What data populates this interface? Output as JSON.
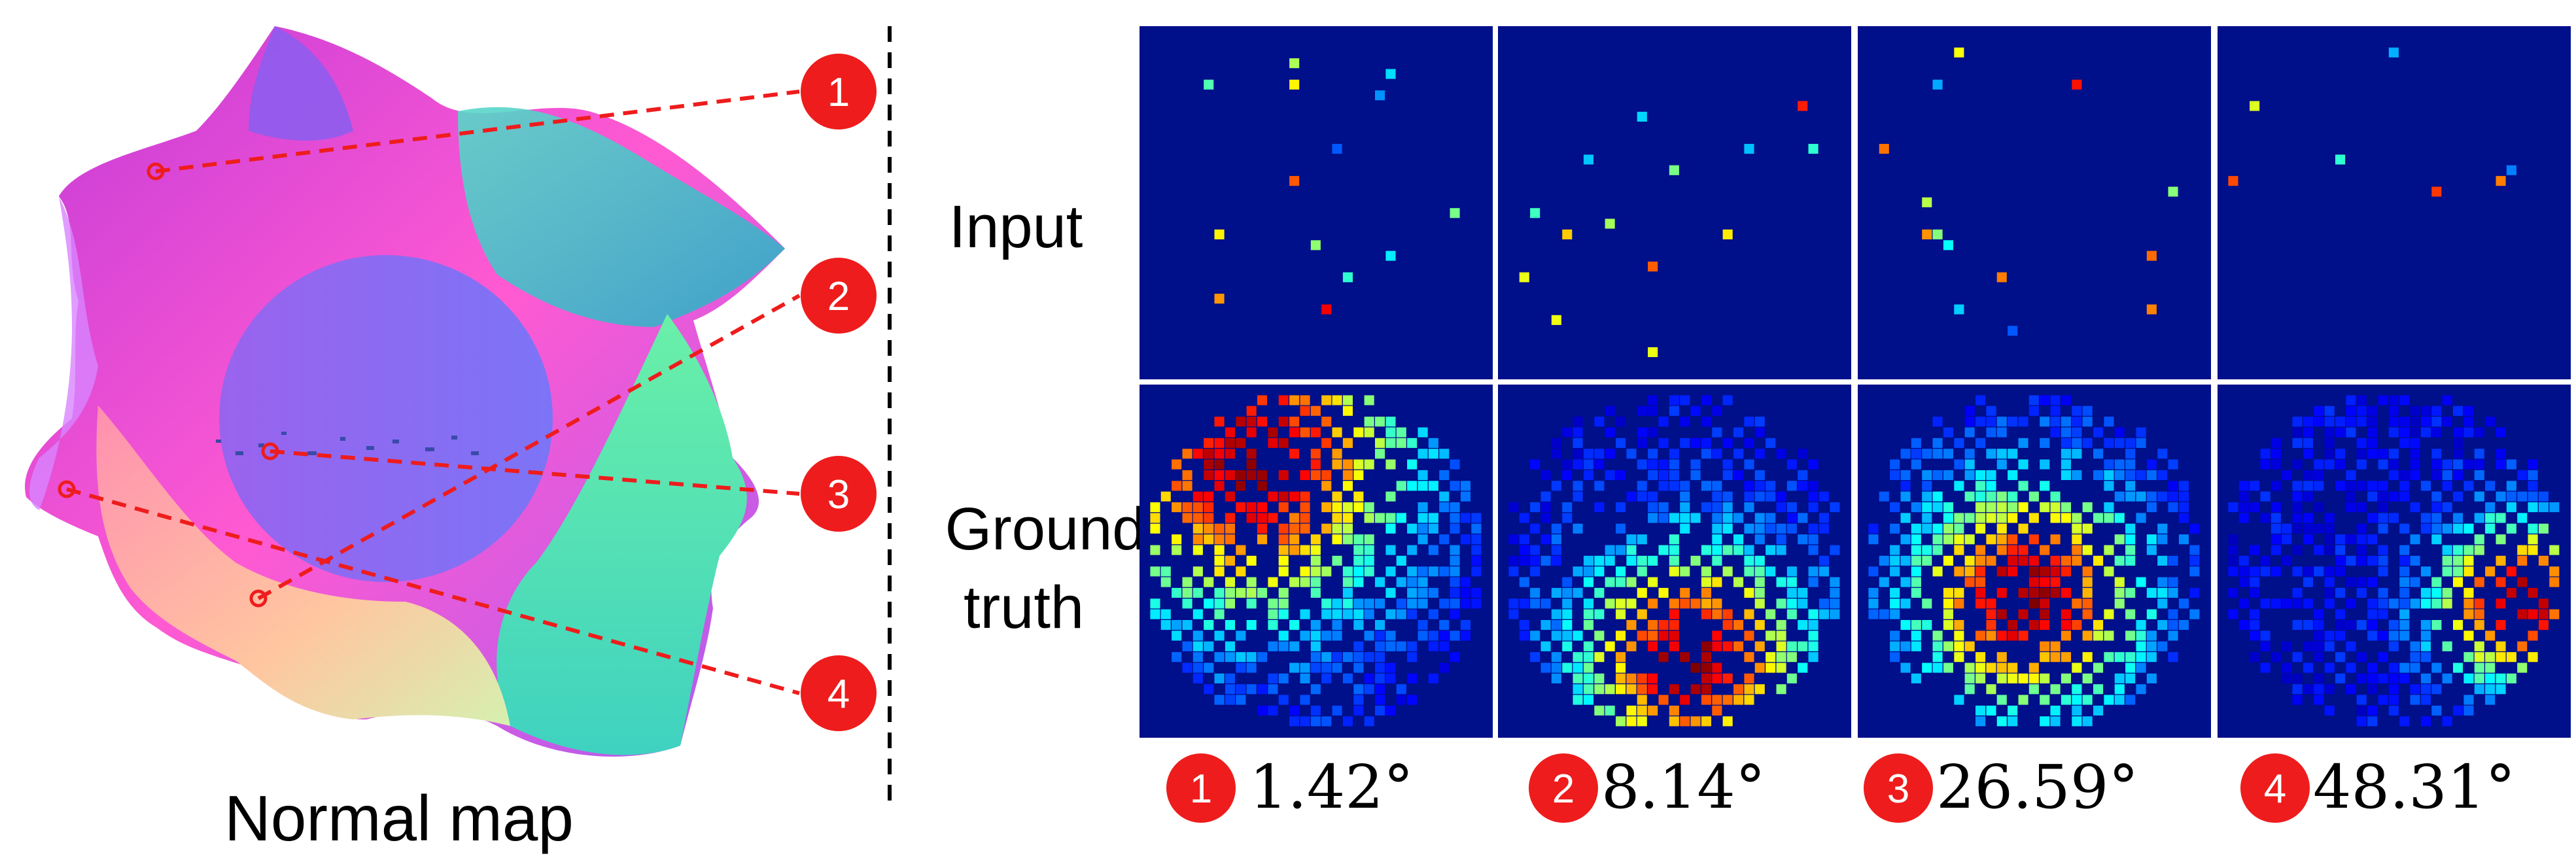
{
  "figure": {
    "normal_map_caption": "Normal map",
    "row_labels": {
      "input": "Input",
      "ground_truth_line1": "Ground",
      "ground_truth_line2": "truth"
    },
    "points": [
      {
        "number": "1",
        "angle": "1.42°"
      },
      {
        "number": "2",
        "angle": "8.14°"
      },
      {
        "number": "3",
        "angle": "26.59°"
      },
      {
        "number": "4",
        "angle": "48.31°"
      }
    ],
    "colors": {
      "marker": "#ee1c1c",
      "heatmap_background": "#000f8a",
      "grid_divider": "#ffffff",
      "dashed_separator": "#000000",
      "colormap": "jet"
    }
  }
}
